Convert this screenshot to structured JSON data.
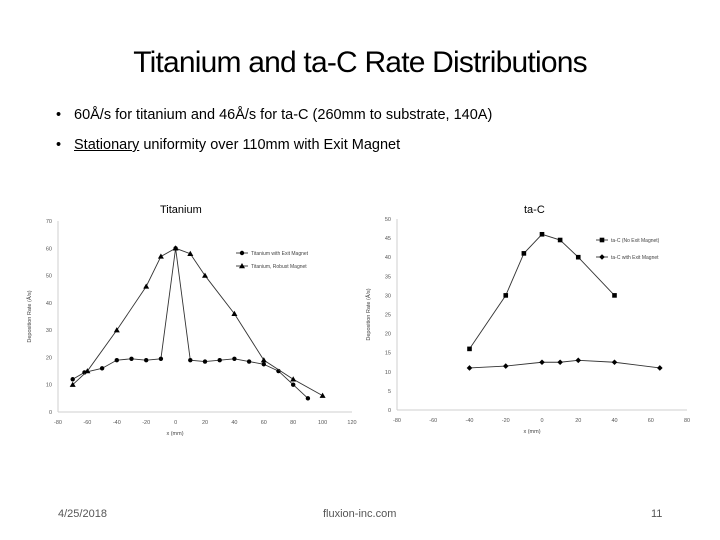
{
  "slide": {
    "title": "Titanium and ta-C Rate Distributions",
    "bullets": [
      {
        "bullet": "•",
        "text": "60Å/s for titanium and 46Å/s for ta-C (260mm to substrate, 140A)"
      },
      {
        "bullet": "•",
        "pre": "",
        "underlined": "Stationary",
        "post": " uniformity over 110mm with Exit Magnet"
      }
    ],
    "footer": {
      "date": "4/25/2018",
      "site": "fluxion-inc.com",
      "page": "11"
    }
  },
  "chart_data": [
    {
      "type": "scatter",
      "title": "Titanium",
      "xlabel": "x (mm)",
      "ylabel": "Deposition Rate (Å/s)",
      "xlim": [
        -80,
        120
      ],
      "ylim": [
        0,
        70
      ],
      "xticks": [
        -80,
        -60,
        -40,
        -20,
        0,
        20,
        40,
        60,
        80,
        100,
        120
      ],
      "yticks": [
        0,
        10,
        20,
        30,
        40,
        50,
        60,
        70
      ],
      "legend_position": "top-right",
      "series": [
        {
          "name": "Titanium with Exit Magnet",
          "marker": "circle",
          "color": "#000000",
          "x": [
            -70,
            -62,
            -50,
            -40,
            -30,
            -20,
            -10,
            0,
            10,
            20,
            30,
            40,
            50,
            60,
            70,
            80,
            90
          ],
          "y": [
            12,
            14.5,
            16,
            19,
            19.5,
            19,
            19.5,
            60,
            19,
            18.5,
            19,
            19.5,
            18.5,
            17.5,
            15,
            10,
            5
          ]
        },
        {
          "name": "Titanium, Robust Magnet",
          "marker": "triangle",
          "color": "#000000",
          "x": [
            -70,
            -60,
            -40,
            -20,
            -10,
            0,
            10,
            20,
            40,
            60,
            80,
            100
          ],
          "y": [
            10,
            15,
            30,
            46,
            57,
            60,
            58,
            50,
            36,
            19,
            12,
            6
          ]
        }
      ]
    },
    {
      "type": "scatter",
      "title": "ta-C",
      "xlabel": "x (mm)",
      "ylabel": "Deposition Rate (Å/s)",
      "xlim": [
        -80,
        80
      ],
      "ylim": [
        0,
        50
      ],
      "xticks": [
        -80,
        -60,
        -40,
        -20,
        0,
        20,
        40,
        60,
        80
      ],
      "yticks": [
        0,
        5,
        10,
        15,
        20,
        25,
        30,
        35,
        40,
        45,
        50
      ],
      "legend_position": "top-right",
      "series": [
        {
          "name": "ta-C (No Exit Magnet)",
          "marker": "square",
          "color": "#000000",
          "x": [
            -40,
            -20,
            -10,
            0,
            10,
            20,
            40
          ],
          "y": [
            16,
            30,
            41,
            46,
            44.5,
            40,
            30
          ]
        },
        {
          "name": "ta-C with Exit Magnet",
          "marker": "diamond",
          "color": "#000000",
          "x": [
            -40,
            -20,
            0,
            10,
            20,
            40,
            65
          ],
          "y": [
            11,
            11.5,
            12.5,
            12.5,
            13,
            12.5,
            11
          ]
        }
      ]
    }
  ]
}
